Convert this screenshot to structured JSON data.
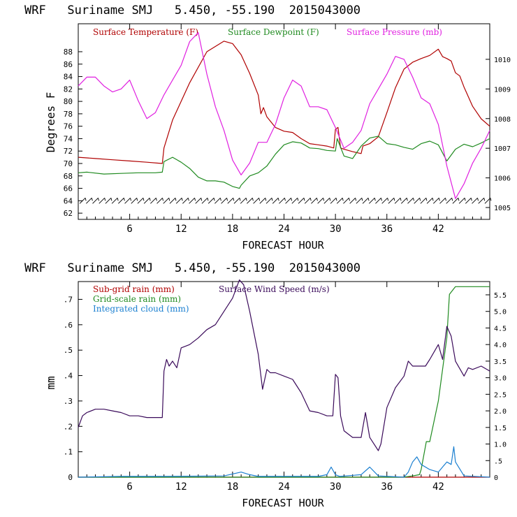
{
  "chart_data": [
    {
      "type": "line",
      "title": "WRF   Suriname SMJ   5.450, -55.190  2015043000",
      "xlabel": "FORECAST HOUR",
      "ylabel": "Degrees F",
      "xlim": [
        0,
        48
      ],
      "ylim": [
        61,
        92.5
      ],
      "y2lim": [
        1004.6,
        1011.2
      ],
      "xticks": [
        "6",
        "12",
        "18",
        "24",
        "30",
        "36",
        "42"
      ],
      "yticks": [
        "62",
        "64",
        "66",
        "68",
        "70",
        "72",
        "74",
        "76",
        "78",
        "80",
        "82",
        "84",
        "86",
        "88"
      ],
      "y2ticks": [
        "1005",
        "1006",
        "1007",
        "1008",
        "1009",
        "1010"
      ],
      "series": [
        {
          "name": "Surface Temperature (F)",
          "color": "#b00000",
          "axis": "left",
          "x": [
            0,
            2,
            4,
            6,
            8,
            9.8,
            10,
            11,
            13,
            15,
            17,
            18,
            19,
            20,
            21,
            21.3,
            21.6,
            22,
            23,
            24,
            25,
            26,
            27,
            28,
            29,
            29.8,
            30,
            30.3,
            30.6,
            31,
            32,
            33,
            33.2,
            34,
            35,
            36,
            37,
            38,
            39,
            40,
            41,
            42,
            42.5,
            43,
            43.5,
            44,
            44.5,
            45,
            46,
            47,
            48
          ],
          "y": [
            71,
            70.8,
            70.6,
            70.4,
            70.2,
            70,
            72.5,
            77,
            83,
            88,
            89.7,
            89.3,
            87.5,
            84.5,
            81,
            78,
            79,
            77.5,
            75.8,
            75.2,
            75,
            74,
            73.2,
            73,
            72.8,
            72.5,
            75.5,
            75.8,
            72.5,
            72.3,
            71.9,
            71.6,
            72.8,
            73.2,
            74.3,
            78.2,
            82.2,
            85.2,
            86.3,
            86.9,
            87.4,
            88.4,
            87.2,
            86.9,
            86.5,
            84.6,
            84.1,
            82.3,
            79.2,
            77.2,
            76
          ]
        },
        {
          "name": "Surface Dewpoint (F)",
          "color": "#1f8a1f",
          "axis": "left",
          "x": [
            0,
            1,
            3,
            5,
            7,
            9,
            9.8,
            10,
            11,
            12,
            13,
            14,
            15,
            16,
            17,
            18,
            18.8,
            19,
            20,
            21,
            22,
            23,
            24,
            25,
            26,
            26.5,
            27,
            28,
            29,
            30,
            30.2,
            31,
            32,
            33,
            34,
            35,
            36,
            37,
            38,
            39,
            40,
            41,
            42,
            43,
            44,
            45,
            46,
            47,
            48
          ],
          "y": [
            68.5,
            68.6,
            68.3,
            68.4,
            68.5,
            68.5,
            68.6,
            70.3,
            71,
            70.2,
            69.2,
            67.8,
            67.2,
            67.2,
            67,
            66.3,
            66,
            66.5,
            68,
            68.5,
            69.6,
            71.5,
            73,
            73.5,
            73.3,
            72.9,
            72.5,
            72.4,
            72.1,
            72,
            74,
            71.2,
            70.8,
            72.8,
            74.1,
            74.4,
            73.2,
            73,
            72.6,
            72.3,
            73.2,
            73.6,
            73,
            70.4,
            72.3,
            73.1,
            72.7,
            73.3,
            74
          ]
        },
        {
          "name": "Surface Pressure (mb)",
          "color": "#e020e0",
          "axis": "right",
          "x": [
            0,
            1,
            2,
            3,
            4,
            5,
            6,
            7,
            8,
            9,
            10,
            11,
            12,
            13,
            14,
            15,
            16,
            17,
            18,
            19,
            20,
            21,
            22,
            23,
            24,
            25,
            26,
            27,
            28,
            29,
            30,
            31,
            32,
            33,
            34,
            35,
            36,
            37,
            38,
            39,
            40,
            41,
            42,
            43,
            44,
            45,
            46,
            47,
            48
          ],
          "y": [
            1009.1,
            1009.4,
            1009.4,
            1009.1,
            1008.9,
            1009,
            1009.3,
            1008.6,
            1008,
            1008.2,
            1008.8,
            1009.3,
            1009.8,
            1010.6,
            1010.9,
            1009.5,
            1008.4,
            1007.6,
            1006.6,
            1006.1,
            1006.5,
            1007.2,
            1007.2,
            1007.8,
            1008.7,
            1009.3,
            1009.1,
            1008.4,
            1008.4,
            1008.3,
            1007.7,
            1007,
            1007.2,
            1007.6,
            1008.5,
            1009,
            1009.5,
            1010.1,
            1010,
            1009.4,
            1008.7,
            1008.5,
            1007.8,
            1006.4,
            1005.3,
            1005.8,
            1006.5,
            1007,
            1007.6
          ]
        }
      ],
      "wind_barbs_label": "wind barbs along 64 F line"
    },
    {
      "type": "line",
      "title": "WRF   Suriname SMJ   5.450, -55.190  2015043000",
      "xlabel": "FORECAST HOUR",
      "ylabel": "mm",
      "xlim": [
        0,
        48
      ],
      "ylim": [
        0,
        0.77
      ],
      "y2lim": [
        0,
        5.9
      ],
      "xticks": [
        "6",
        "12",
        "18",
        "24",
        "30",
        "36",
        "42"
      ],
      "yticks": [
        "0",
        ".1",
        ".2",
        ".3",
        ".4",
        ".5",
        ".6",
        ".7"
      ],
      "y2ticks": [
        "0",
        ".5",
        "1.0",
        "1.5",
        "2.0",
        "2.5",
        "3.0",
        "3.5",
        "4.0",
        "4.5",
        "5.0",
        "5.5"
      ],
      "series": [
        {
          "name": "Sub-grid rain (mm)",
          "color": "#b00000",
          "axis": "left",
          "x": [
            0,
            48
          ],
          "y": [
            0,
            0
          ]
        },
        {
          "name": "Grid-scale rain (mm)",
          "color": "#1f8a1f",
          "axis": "left",
          "x": [
            0,
            38,
            39,
            39.8,
            40,
            40.6,
            41,
            42,
            43,
            43.3,
            44,
            48
          ],
          "y": [
            0,
            0,
            0.005,
            0.01,
            0.03,
            0.14,
            0.14,
            0.3,
            0.55,
            0.72,
            0.75,
            0.75
          ]
        },
        {
          "name": "Integrated cloud (mm)",
          "color": "#1a7fd0",
          "axis": "left",
          "x": [
            0,
            5,
            8,
            10,
            17,
            19,
            20,
            21,
            28,
            29,
            29.5,
            30,
            30.5,
            33,
            34,
            35,
            38,
            38.5,
            39,
            39.5,
            40,
            41,
            42,
            43,
            43.5,
            43.8,
            44,
            45,
            48
          ],
          "y": [
            0,
            0.003,
            0.003,
            0.003,
            0.005,
            0.02,
            0.01,
            0.003,
            0.003,
            0.01,
            0.04,
            0.01,
            0.003,
            0.01,
            0.04,
            0.005,
            0,
            0.02,
            0.06,
            0.08,
            0.05,
            0.03,
            0.02,
            0.06,
            0.05,
            0.12,
            0.06,
            0.005,
            0
          ]
        },
        {
          "name": "Surface Wind Speed (m/s)",
          "color": "#3a0a5a",
          "axis": "right",
          "x": [
            0,
            0.5,
            1,
            2,
            3,
            4,
            5,
            6,
            7,
            8,
            9,
            9.8,
            10,
            10.3,
            10.6,
            11,
            11.5,
            12,
            13,
            14,
            15,
            16,
            17,
            18,
            18.8,
            19.3,
            20,
            21,
            21.5,
            22,
            22.4,
            23,
            24,
            25,
            26,
            27,
            28,
            29,
            29.7,
            30,
            30.3,
            30.6,
            31,
            32,
            32.5,
            33,
            33.5,
            34,
            35,
            35.3,
            36,
            37,
            38,
            38.5,
            39,
            40,
            40.5,
            41,
            42,
            42.5,
            43,
            43.5,
            44,
            45,
            45.5,
            46,
            47,
            48
          ],
          "y": [
            1.5,
            1.85,
            1.95,
            2.05,
            2.05,
            2.0,
            1.95,
            1.85,
            1.85,
            1.8,
            1.8,
            1.8,
            3.2,
            3.55,
            3.35,
            3.5,
            3.3,
            3.9,
            4.0,
            4.2,
            4.45,
            4.6,
            5.0,
            5.4,
            5.95,
            5.8,
            5.0,
            3.7,
            2.65,
            3.25,
            3.15,
            3.15,
            3.05,
            2.95,
            2.55,
            2.0,
            1.95,
            1.85,
            1.85,
            3.1,
            3.0,
            1.85,
            1.4,
            1.2,
            1.2,
            1.2,
            1.95,
            1.2,
            0.8,
            1.0,
            2.1,
            2.7,
            3.05,
            3.5,
            3.35,
            3.35,
            3.35,
            3.55,
            4.0,
            3.55,
            4.55,
            4.25,
            3.5,
            3.05,
            3.3,
            3.25,
            3.35,
            3.2
          ]
        }
      ]
    }
  ],
  "legends": {
    "top": [
      "Surface Temperature (F)",
      "Surface Dewpoint (F)",
      "Surface Pressure (mb)"
    ],
    "bottom_left": [
      "Sub-grid rain (mm)",
      "Grid-scale rain (mm)",
      "Integrated cloud (mm)"
    ],
    "bottom_right": "Surface Wind Speed (m/s)"
  },
  "colors": {
    "temperature": "#b00000",
    "dewpoint": "#1f8a1f",
    "pressure": "#e020e0",
    "cloud": "#1a7fd0",
    "wind": "#3a0a5a",
    "axis": "#000000"
  }
}
